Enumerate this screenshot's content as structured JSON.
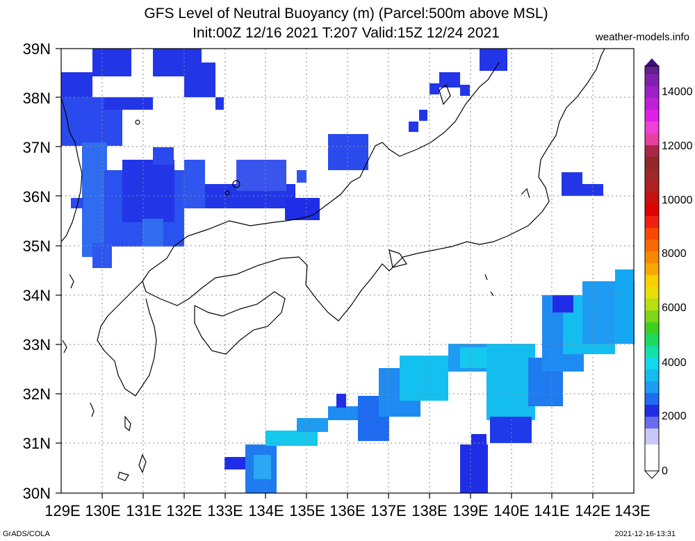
{
  "title_line1": "GFS Level of Neutral Buoyancy (m) (Parcel:500m above MSL)",
  "title_line2": "Init:00Z 12/16 2021 T:207 Valid:15Z 12/24 2021",
  "site": "weather-models.info",
  "footer_left": "GrADS/COLA",
  "footer_right": "2021-12-16-13:31",
  "lat_labels": [
    "39N",
    "38N",
    "37N",
    "36N",
    "35N",
    "34N",
    "33N",
    "32N",
    "31N",
    "30N"
  ],
  "lon_labels": [
    "129E",
    "130E",
    "131E",
    "132E",
    "133E",
    "134E",
    "135E",
    "136E",
    "137E",
    "138E",
    "139E",
    "140E",
    "141E",
    "142E",
    "143E"
  ],
  "colorbar_labels": [
    "14000",
    "12000",
    "10000",
    "8000",
    "6000",
    "4000",
    "2000",
    "0"
  ],
  "colors": {
    "dark_blue": "#1f2ee6",
    "mid_blue": "#2f56ee",
    "blue": "#1e7bf0",
    "light_blue": "#2aa8f5",
    "cyan": "#14d8ee"
  }
}
